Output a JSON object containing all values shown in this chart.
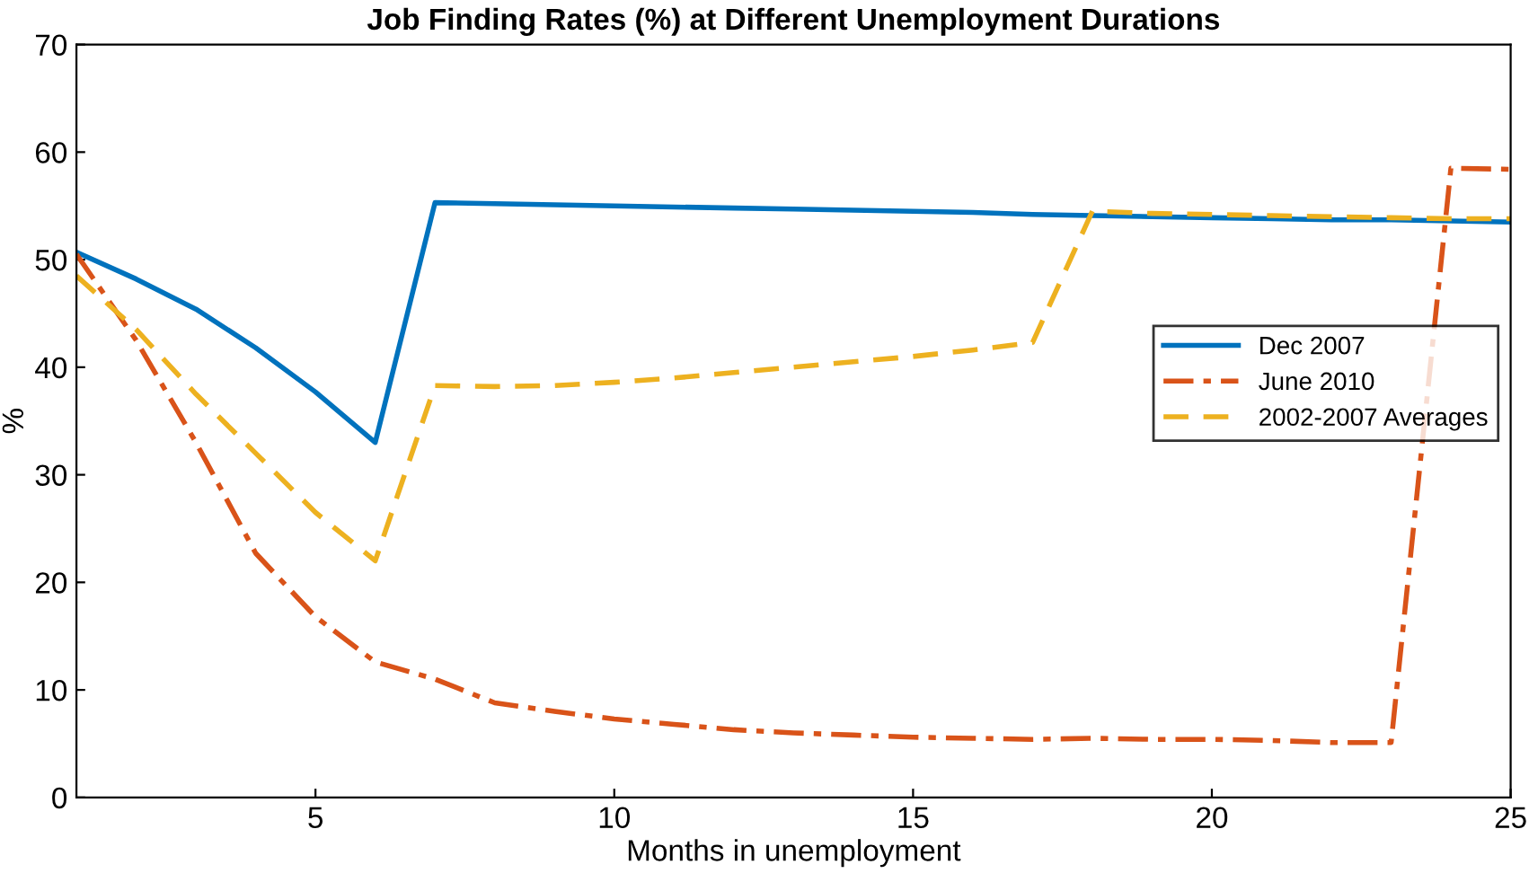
{
  "chart_data": {
    "type": "line",
    "title": "Job Finding Rates (%) at Different Unemployment Durations",
    "xlabel": "Months in unemployment",
    "ylabel": "%",
    "x": [
      1,
      2,
      3,
      4,
      5,
      6,
      7,
      8,
      9,
      10,
      11,
      12,
      13,
      14,
      15,
      16,
      17,
      18,
      19,
      20,
      21,
      22,
      23,
      24,
      25
    ],
    "series": [
      {
        "name": "Dec 2007",
        "color": "#0072bd",
        "line_style": "solid",
        "values": [
          50.7,
          48.2,
          45.4,
          41.8,
          37.7,
          33.0,
          55.3,
          55.2,
          55.1,
          55.0,
          54.9,
          54.8,
          54.7,
          54.6,
          54.5,
          54.4,
          54.2,
          54.1,
          54.0,
          53.9,
          53.8,
          53.7,
          53.7,
          53.6,
          53.5
        ]
      },
      {
        "name": "June 2010",
        "color": "#d95319",
        "line_style": "dashdot",
        "values": [
          50.5,
          42.5,
          33.0,
          22.7,
          16.8,
          12.6,
          11.0,
          8.8,
          8.0,
          7.3,
          6.8,
          6.3,
          6.0,
          5.8,
          5.6,
          5.5,
          5.4,
          5.5,
          5.4,
          5.4,
          5.3,
          5.1,
          5.1,
          58.5,
          58.4
        ]
      },
      {
        "name": "2002-2007 Averages",
        "color": "#edb120",
        "line_style": "dashed",
        "values": [
          48.5,
          43.5,
          37.5,
          32.0,
          26.5,
          22.0,
          38.3,
          38.2,
          38.3,
          38.6,
          39.0,
          39.5,
          40.0,
          40.5,
          41.0,
          41.6,
          42.3,
          54.5,
          54.3,
          54.2,
          54.1,
          54.0,
          53.9,
          53.8,
          53.8
        ]
      }
    ],
    "xlim": [
      1,
      25
    ],
    "xticks": [
      5,
      10,
      15,
      20,
      25
    ],
    "ylim": [
      0,
      70
    ],
    "yticks": [
      0,
      10,
      20,
      30,
      40,
      50,
      60,
      70
    ],
    "grid": false,
    "legend": "right"
  }
}
